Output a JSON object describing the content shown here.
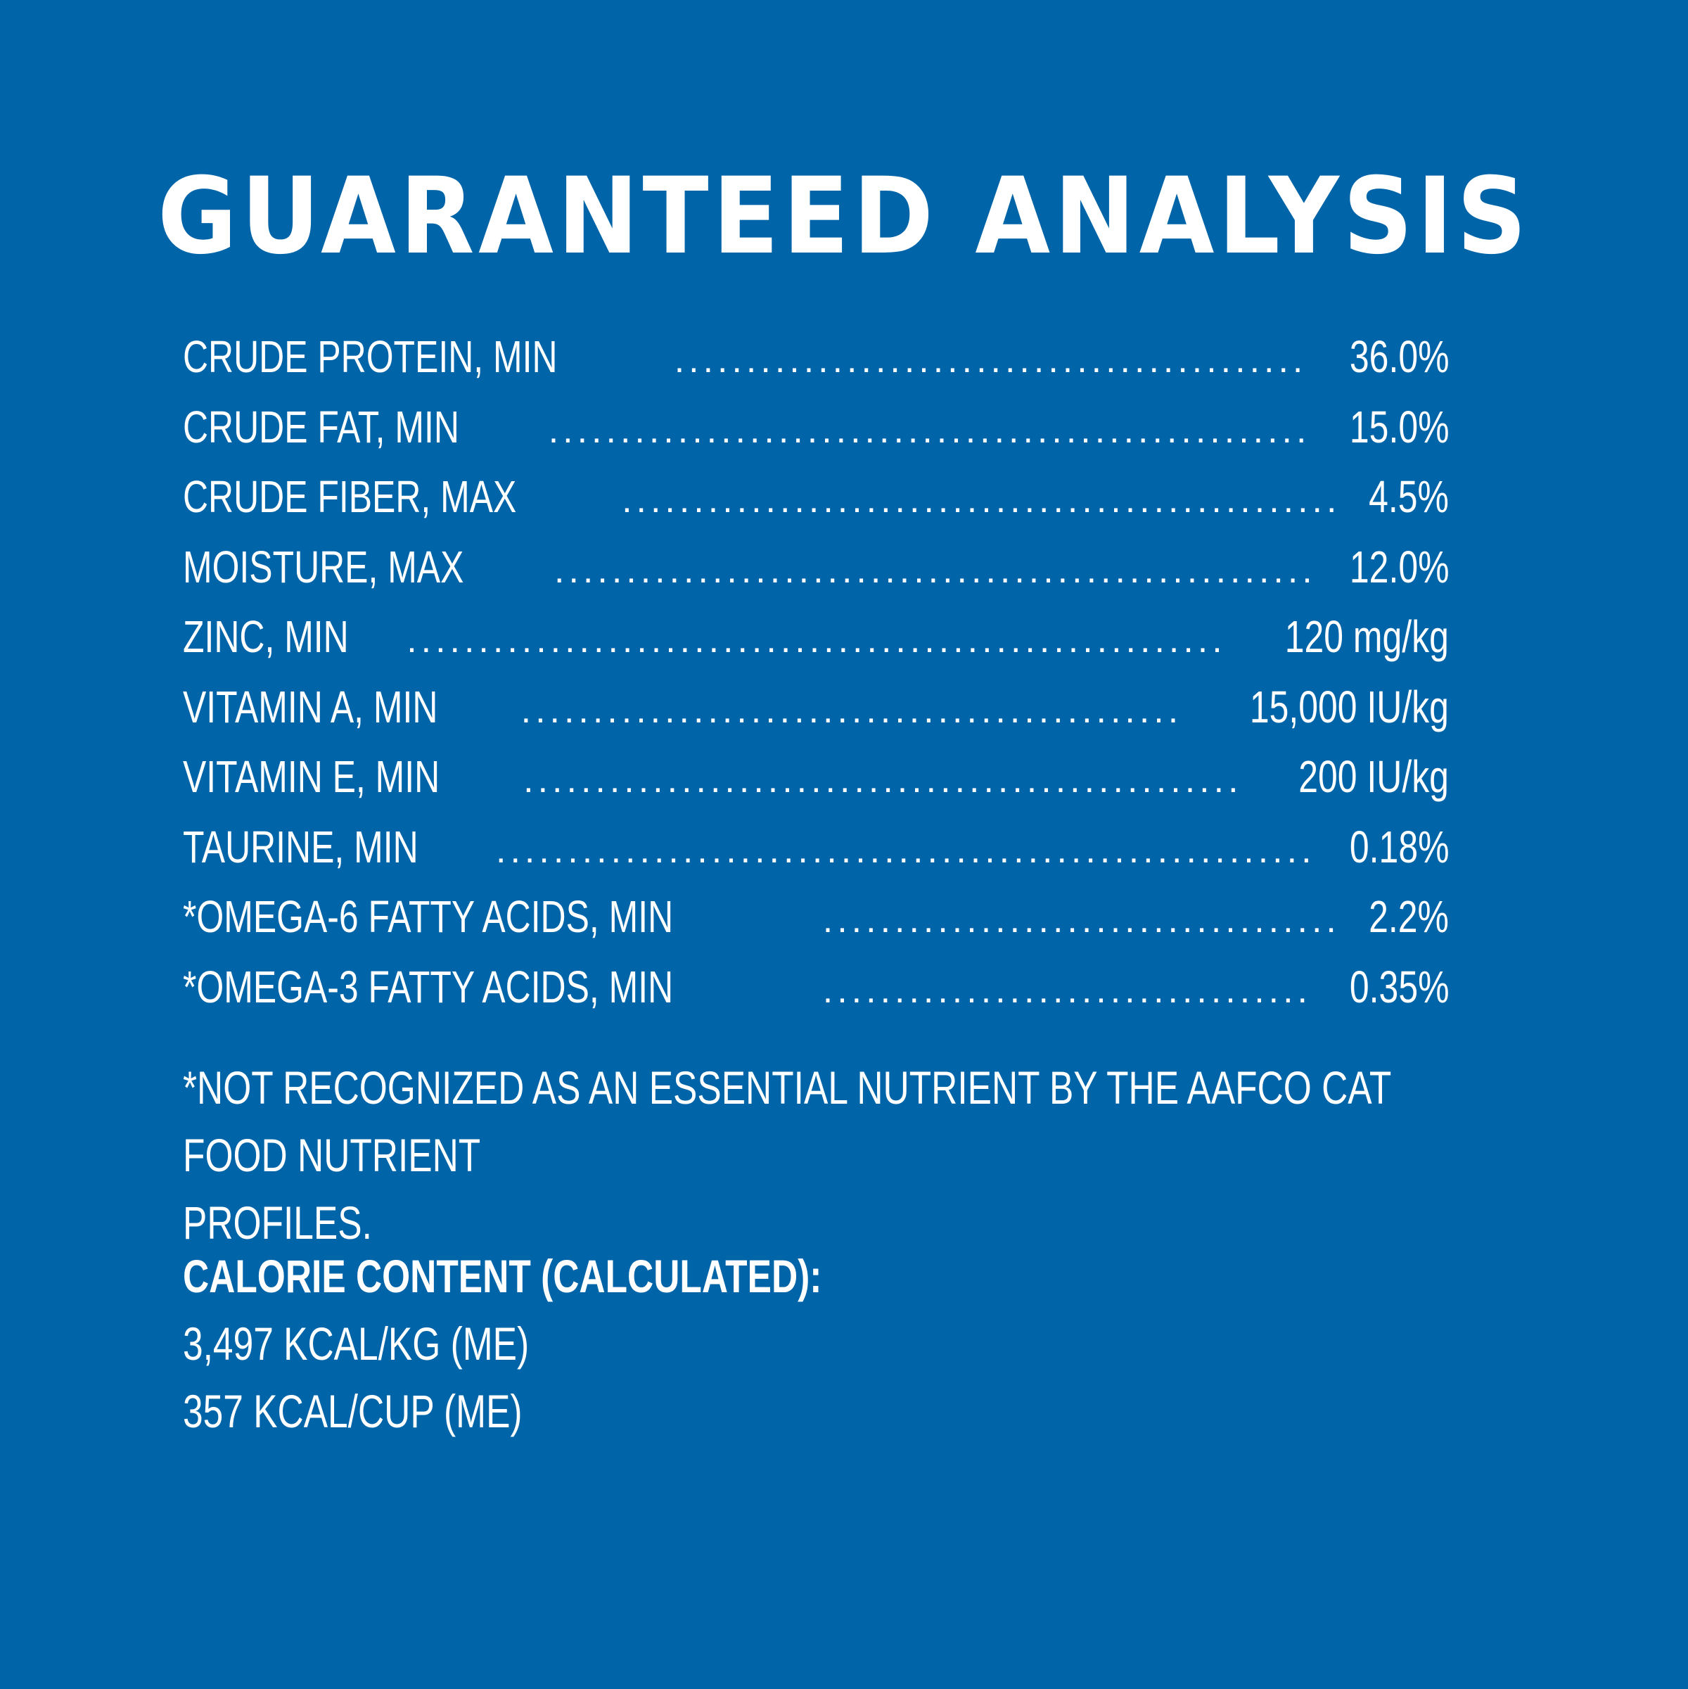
{
  "title": "GUARANTEED ANALYSIS",
  "analysis": [
    {
      "label": "CRUDE PROTEIN, MIN",
      "value": "36.0%"
    },
    {
      "label": "CRUDE FAT, MIN",
      "value": "15.0%"
    },
    {
      "label": "CRUDE FIBER, MAX",
      "value": "4.5%"
    },
    {
      "label": "MOISTURE, MAX",
      "value": "12.0%"
    },
    {
      "label": "ZINC, MIN",
      "value": "120 mg/kg"
    },
    {
      "label": "VITAMIN A, MIN",
      "value": "15,000 IU/kg"
    },
    {
      "label": "VITAMIN E, MIN",
      "value": "200 IU/kg"
    },
    {
      "label": "TAURINE, MIN",
      "value": "0.18%"
    },
    {
      "label": "*OMEGA-6 FATTY ACIDS, MIN",
      "value": "2.2%"
    },
    {
      "label": "*OMEGA-3 FATTY ACIDS, MIN",
      "value": "0.35%"
    }
  ],
  "footnote": {
    "line1": "*NOT RECOGNIZED AS AN ESSENTIAL NUTRIENT BY THE AAFCO CAT FOOD NUTRIENT",
    "line2": "PROFILES."
  },
  "calorie": {
    "heading": "CALORIE CONTENT (CALCULATED):",
    "per_kg": "3,497 KCAL/KG (ME)",
    "per_cup": "357 KCAL/CUP (ME)"
  },
  "colors": {
    "background": "#0064a9",
    "text": "#ffffff"
  }
}
